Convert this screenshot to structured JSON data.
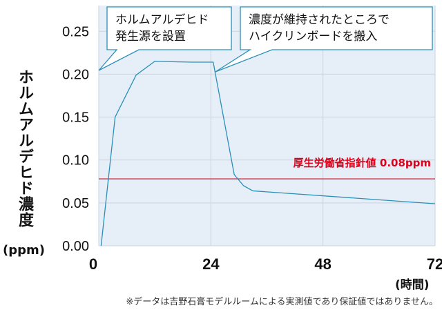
{
  "chart_data": {
    "type": "line",
    "ylabel": "ホルムアルデヒド濃度",
    "ylabel_unit": "(ppm)",
    "xunit": "(時間)",
    "xlim": [
      0,
      72
    ],
    "ylim": [
      0,
      0.28
    ],
    "x_ticks": [
      0,
      24,
      48,
      72
    ],
    "y_ticks": [
      "0.00",
      "0.05",
      "0.10",
      "0.15",
      "0.20",
      "0.25"
    ],
    "grid": true,
    "series": [
      {
        "color": "#2a8fb8",
        "x": [
          0.5,
          3.5,
          8,
          12,
          20,
          24.5,
          29,
          31,
          33,
          72
        ],
        "y": [
          0.0,
          0.15,
          0.199,
          0.215,
          0.214,
          0.214,
          0.083,
          0.07,
          0.064,
          0.049
        ]
      }
    ],
    "reference_line": {
      "label": "厚生労働省指針値 0.08ppm",
      "value": 0.078,
      "color": "#d0021b"
    },
    "annotations": [
      {
        "lines": [
          "ホルムアルデヒド",
          "発生源を設置"
        ],
        "x": 0
      },
      {
        "lines": [
          "濃度が維持されたところで",
          "ハイクリンボードを搬入"
        ],
        "x": 24
      }
    ],
    "colors": {
      "plot_bg": "#e6eef7",
      "grid": "#c9d3df",
      "callout_border": "#2a8fb8"
    }
  },
  "footnote": "※データは吉野石膏モデルルームによる実測値であり保証値ではありません。"
}
